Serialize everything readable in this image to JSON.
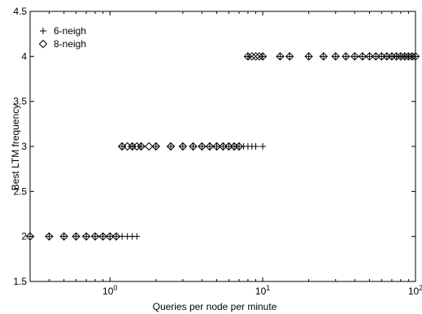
{
  "chart_data": {
    "type": "scatter",
    "title": "",
    "xlabel": "Queries per node per minute",
    "ylabel": "Best LTM frequency",
    "xscale": "log",
    "xlim": [
      0.3,
      100
    ],
    "ylim": [
      1.5,
      4.5
    ],
    "xticks": [
      {
        "value": 1,
        "base": "10",
        "exp": "0"
      },
      {
        "value": 10,
        "base": "10",
        "exp": "1"
      },
      {
        "value": 100,
        "base": "10",
        "exp": "2"
      }
    ],
    "yticks": [
      {
        "value": 1.5,
        "label": "1.5"
      },
      {
        "value": 2,
        "label": "2"
      },
      {
        "value": 2.5,
        "label": "2.5"
      },
      {
        "value": 3,
        "label": "3"
      },
      {
        "value": 3.5,
        "label": "3.5"
      },
      {
        "value": 4,
        "label": "4"
      },
      {
        "value": 4.5,
        "label": "4.5"
      }
    ],
    "grid": false,
    "legend_position": "top-left",
    "series": [
      {
        "name": "6-neigh",
        "marker": "plus",
        "points": [
          [
            0.3,
            2
          ],
          [
            0.4,
            2
          ],
          [
            0.5,
            2
          ],
          [
            0.6,
            2
          ],
          [
            0.7,
            2
          ],
          [
            0.8,
            2
          ],
          [
            0.9,
            2
          ],
          [
            1.0,
            2
          ],
          [
            1.1,
            2
          ],
          [
            1.2,
            2
          ],
          [
            1.3,
            2
          ],
          [
            1.4,
            2
          ],
          [
            1.5,
            2
          ],
          [
            1.2,
            3
          ],
          [
            1.4,
            3
          ],
          [
            1.6,
            3
          ],
          [
            2,
            3
          ],
          [
            2.5,
            3
          ],
          [
            3,
            3
          ],
          [
            3.5,
            3
          ],
          [
            4,
            3
          ],
          [
            4.5,
            3
          ],
          [
            5,
            3
          ],
          [
            5.5,
            3
          ],
          [
            6,
            3
          ],
          [
            6.5,
            3
          ],
          [
            7,
            3
          ],
          [
            7.5,
            3
          ],
          [
            8,
            3
          ],
          [
            8.5,
            3
          ],
          [
            9,
            3
          ],
          [
            10,
            3
          ],
          [
            8,
            4
          ],
          [
            10,
            4
          ],
          [
            13,
            4
          ],
          [
            15,
            4
          ],
          [
            20,
            4
          ],
          [
            25,
            4
          ],
          [
            30,
            4
          ],
          [
            35,
            4
          ],
          [
            40,
            4
          ],
          [
            45,
            4
          ],
          [
            50,
            4
          ],
          [
            55,
            4
          ],
          [
            60,
            4
          ],
          [
            65,
            4
          ],
          [
            70,
            4
          ],
          [
            75,
            4
          ],
          [
            80,
            4
          ],
          [
            85,
            4
          ],
          [
            90,
            4
          ],
          [
            95,
            4
          ],
          [
            100,
            4
          ]
        ]
      },
      {
        "name": "8-neigh",
        "marker": "diamond",
        "points": [
          [
            0.3,
            2
          ],
          [
            0.4,
            2
          ],
          [
            0.5,
            2
          ],
          [
            0.6,
            2
          ],
          [
            0.7,
            2
          ],
          [
            0.8,
            2
          ],
          [
            0.9,
            2
          ],
          [
            1.0,
            2
          ],
          [
            1.1,
            2
          ],
          [
            1.2,
            3
          ],
          [
            1.3,
            3
          ],
          [
            1.4,
            3
          ],
          [
            1.5,
            3
          ],
          [
            1.6,
            3
          ],
          [
            1.8,
            3
          ],
          [
            2,
            3
          ],
          [
            2.5,
            3
          ],
          [
            3,
            3
          ],
          [
            3.5,
            3
          ],
          [
            4,
            3
          ],
          [
            4.5,
            3
          ],
          [
            5,
            3
          ],
          [
            5.5,
            3
          ],
          [
            6,
            3
          ],
          [
            6.5,
            3
          ],
          [
            7,
            3
          ],
          [
            8,
            4
          ],
          [
            8.5,
            4
          ],
          [
            9,
            4
          ],
          [
            9.5,
            4
          ],
          [
            10,
            4
          ],
          [
            13,
            4
          ],
          [
            15,
            4
          ],
          [
            20,
            4
          ],
          [
            25,
            4
          ],
          [
            30,
            4
          ],
          [
            35,
            4
          ],
          [
            40,
            4
          ],
          [
            45,
            4
          ],
          [
            50,
            4
          ],
          [
            55,
            4
          ],
          [
            60,
            4
          ],
          [
            65,
            4
          ],
          [
            70,
            4
          ],
          [
            75,
            4
          ],
          [
            80,
            4
          ],
          [
            85,
            4
          ],
          [
            90,
            4
          ],
          [
            95,
            4
          ],
          [
            100,
            4
          ]
        ]
      }
    ]
  }
}
